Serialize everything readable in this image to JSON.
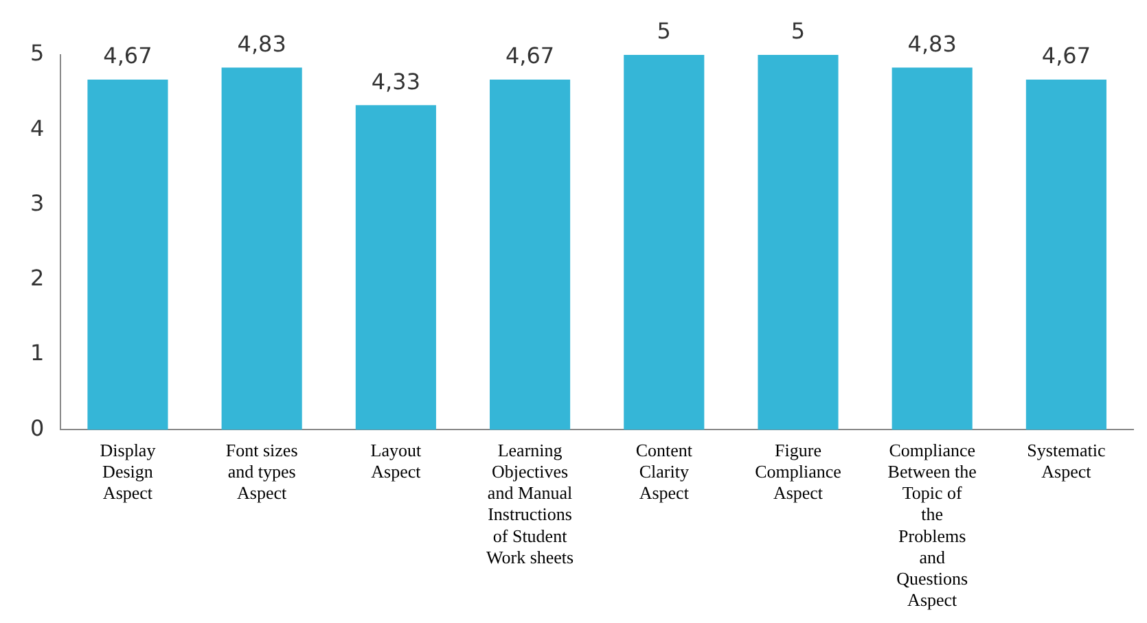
{
  "chart_data": {
    "type": "bar",
    "categories": [
      "Display Design Aspect",
      "Font sizes and types Aspect",
      "Layout Aspect",
      "Learning Objectives and Manual Instructions of Student Work sheets",
      "Content Clarity Aspect",
      "Figure Compliance Aspect",
      "Compliance Between the Topic of the Problems and Questions Aspect",
      "Systematic Aspect"
    ],
    "values": [
      4.67,
      4.83,
      4.33,
      4.67,
      5,
      5,
      4.83,
      4.67
    ],
    "value_labels": [
      "4,67",
      "4,83",
      "4,33",
      "4,67",
      "5",
      "5",
      "4,83",
      "4,67"
    ],
    "color": "#35b6d7",
    "ylim": [
      0,
      5
    ],
    "yticks": [
      0,
      1,
      2,
      3,
      4,
      5
    ],
    "grid": false,
    "legend": false
  }
}
